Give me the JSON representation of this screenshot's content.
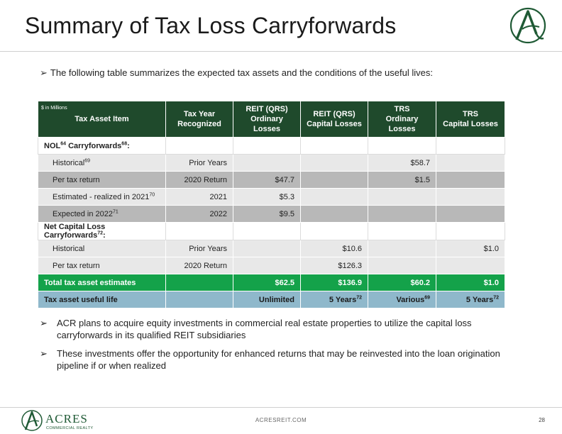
{
  "header": {
    "title": "Summary of Tax Loss Carryforwards"
  },
  "intro": {
    "text": "The following table summarizes the expected tax assets and the conditions of the useful lives:"
  },
  "table": {
    "units": "$ in Millions",
    "columns": [
      "Tax Asset Item",
      "Tax Year Recognized",
      "REIT (QRS) Ordinary Losses",
      "REIT (QRS) Capital Losses",
      "TRS Ordinary Losses",
      "TRS Capital Losses"
    ],
    "column_lines": [
      [
        "Tax Asset Item"
      ],
      [
        "Tax Year",
        "Recognized"
      ],
      [
        "REIT (QRS)",
        "Ordinary Losses"
      ],
      [
        "REIT (QRS)",
        "Capital Losses"
      ],
      [
        "TRS",
        "Ordinary Losses"
      ],
      [
        "TRS",
        "Capital Losses"
      ]
    ],
    "section_nol": {
      "label": "NOL",
      "sup1": "64",
      "label2": " Carryforwards",
      "sup2": "68",
      "suffix": ":"
    },
    "rows_nol": [
      {
        "item": "Historical",
        "sup": "69",
        "year": "Prior Years",
        "reit_ord": "",
        "reit_cap": "",
        "trs_ord": "$58.7",
        "trs_cap": ""
      },
      {
        "item": "Per tax return",
        "sup": "",
        "year": "2020 Return",
        "reit_ord": "$47.7",
        "reit_cap": "",
        "trs_ord": "$1.5",
        "trs_cap": ""
      },
      {
        "item": "Estimated - realized in 2021",
        "sup": "70",
        "year": "2021",
        "reit_ord": "$5.3",
        "reit_cap": "",
        "trs_ord": "",
        "trs_cap": ""
      },
      {
        "item": "Expected in 2022",
        "sup": "71",
        "year": "2022",
        "reit_ord": "$9.5",
        "reit_cap": "",
        "trs_ord": "",
        "trs_cap": ""
      }
    ],
    "section_ncl": {
      "label": "Net Capital Loss Carryforwards",
      "sup": "72",
      "suffix": ":"
    },
    "rows_ncl": [
      {
        "item": "Historical",
        "year": "Prior Years",
        "reit_ord": "",
        "reit_cap": "$10.6",
        "trs_ord": "",
        "trs_cap": "$1.0"
      },
      {
        "item": "Per tax return",
        "year": "2020 Return",
        "reit_ord": "",
        "reit_cap": "$126.3",
        "trs_ord": "",
        "trs_cap": ""
      }
    ],
    "total": {
      "label": "Total tax asset estimates",
      "reit_ord": "$62.5",
      "reit_cap": "$136.9",
      "trs_ord": "$60.2",
      "trs_cap": "$1.0"
    },
    "useful_life": {
      "label": "Tax asset useful life",
      "reit_ord": "Unlimited",
      "reit_cap": "5 Years",
      "reit_cap_sup": "72",
      "trs_ord": "Various",
      "trs_ord_sup": "69",
      "trs_cap": "5 Years",
      "trs_cap_sup": "72"
    }
  },
  "bullets": [
    "ACR plans to acquire equity investments in commercial real estate properties to utilize the capital loss carryforwards in its qualified REIT subsidiaries",
    "These investments offer the opportunity for enhanced returns that may be reinvested into the loan origination pipeline if or when realized"
  ],
  "footer": {
    "logo_name": "ACRES",
    "logo_sub": "COMMERCIAL REALTY",
    "url": "ACRESREIT.COM",
    "page": "28"
  },
  "colors": {
    "header_green": "#1f4a2c",
    "total_green": "#14a24a",
    "life_blue": "#8fb8cb",
    "logo_green": "#1f5a35"
  }
}
